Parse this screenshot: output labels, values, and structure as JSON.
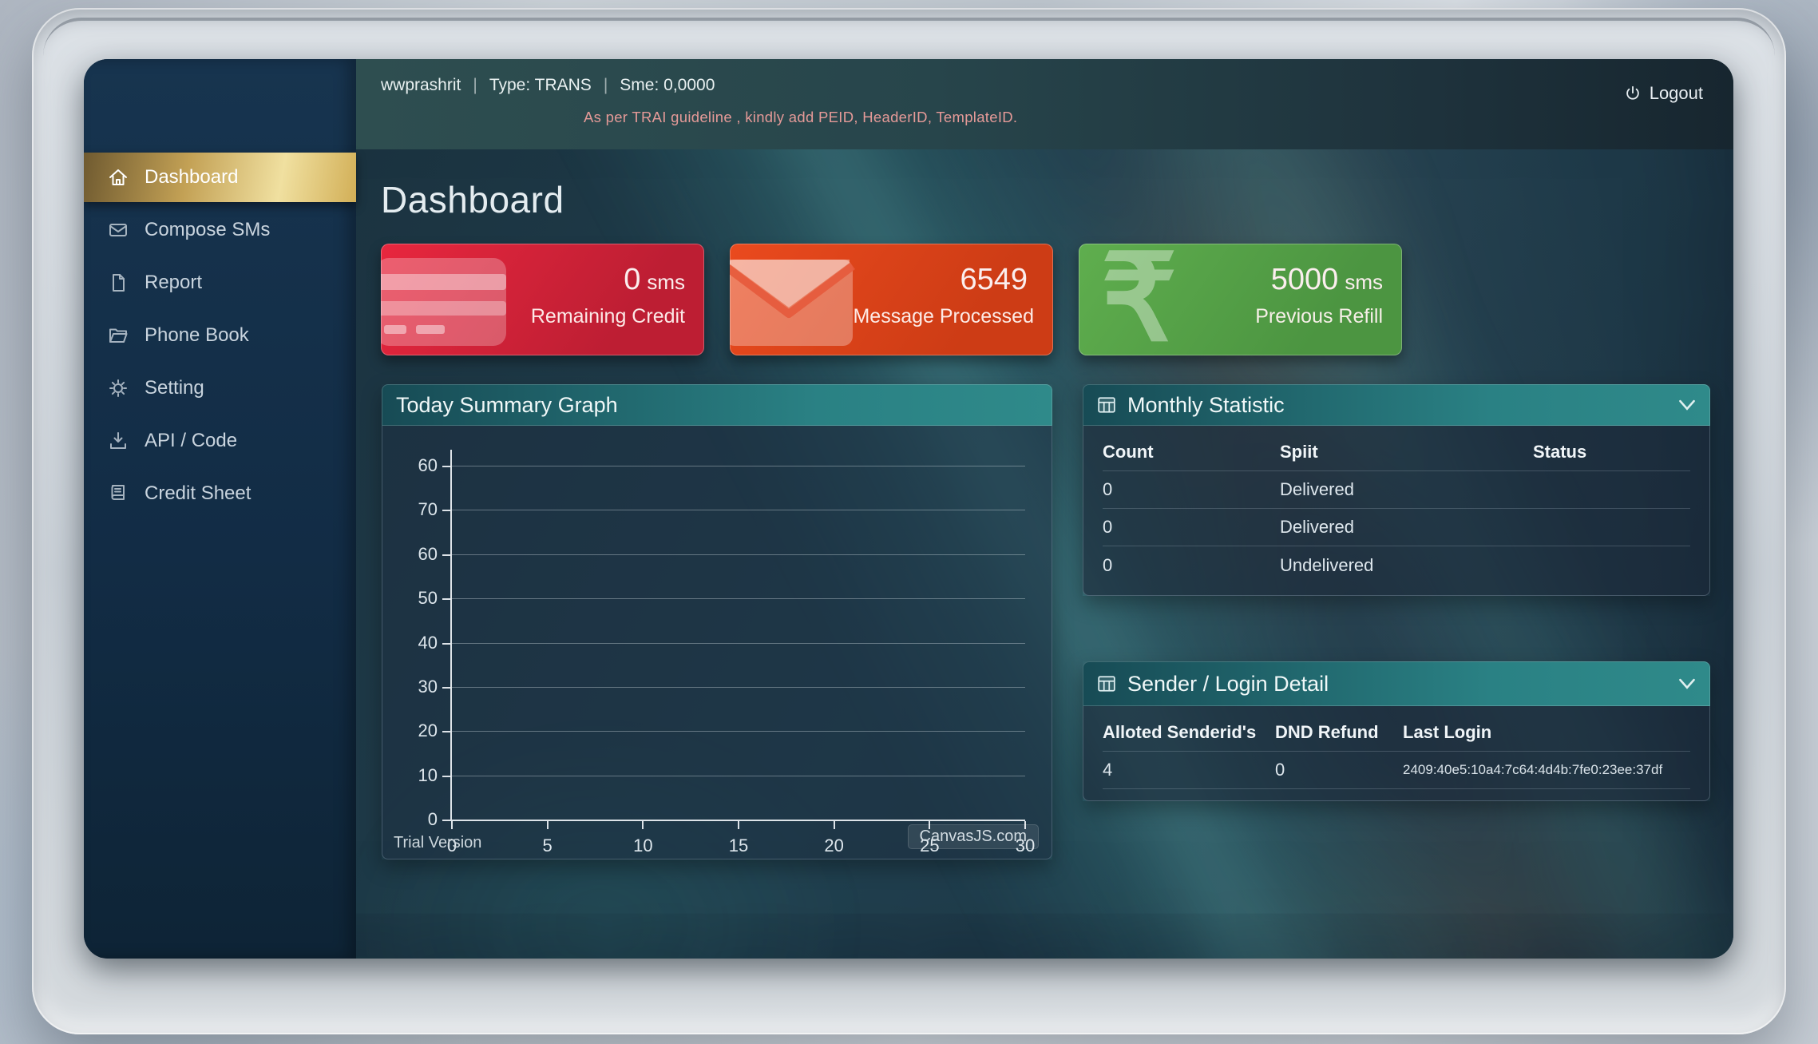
{
  "window": {
    "logout_label": "Logout"
  },
  "topbar": {
    "username": "wwprashrit",
    "separator": "|",
    "type_label": "Type: TRANS",
    "sme_label": "Sme: 0,0000",
    "trai_notice": "As per TRAI guideline , kindly add PEID, HeaderID, TemplateID."
  },
  "sidebar": {
    "items": [
      {
        "label": "Dashboard",
        "icon": "home-icon",
        "active": true
      },
      {
        "label": "Compose SMs",
        "icon": "envelope-icon",
        "active": false
      },
      {
        "label": "Report",
        "icon": "file-icon",
        "active": false
      },
      {
        "label": "Phone Book",
        "icon": "folder-icon",
        "active": false
      },
      {
        "label": "Setting",
        "icon": "gear-icon",
        "active": false
      },
      {
        "label": "API / Code",
        "icon": "download-icon",
        "active": false
      },
      {
        "label": "Credit Sheet",
        "icon": "book-icon",
        "active": false
      }
    ]
  },
  "page": {
    "title": "Dashboard"
  },
  "cards": [
    {
      "value": "0",
      "unit": "sms",
      "label": "Remaining Credit",
      "color": "#d02237",
      "icon": "credit-card-icon"
    },
    {
      "value": "6549",
      "unit": "",
      "label": "Message Processed",
      "color": "#dd4520",
      "icon": "envelope-icon"
    },
    {
      "value": "5000",
      "unit": "sms",
      "label": "Previous Refill",
      "color": "#57a449",
      "icon": "rupee-icon",
      "glyph": "₹"
    }
  ],
  "chart_panel": {
    "title": "Today Summary Graph"
  },
  "chart_data": {
    "type": "line",
    "title": "Today Summary Graph",
    "series": [],
    "y_tick_labels": [
      "60",
      "70",
      "60",
      "50",
      "40",
      "30",
      "20",
      "10",
      "0"
    ],
    "x_tick_labels": [
      "0",
      "5",
      "10",
      "15",
      "20",
      "25",
      "30"
    ],
    "xlim": [
      0,
      30
    ],
    "grid": true,
    "legend": false,
    "watermark_left": "Trial Version",
    "watermark_right": "CanvasJS.com"
  },
  "monthly_statistic": {
    "title": "Monthly Statistic",
    "columns": [
      "Count",
      "Spiit",
      "Status"
    ],
    "rows": [
      {
        "count": "0",
        "split": "Delivered",
        "status": ""
      },
      {
        "count": "0",
        "split": "Delivered",
        "status": ""
      },
      {
        "count": "0",
        "split": "Undelivered",
        "status": ""
      }
    ]
  },
  "sender_login": {
    "title": "Sender / Login Detail",
    "columns": [
      "Alloted Senderid's",
      "DND Refund",
      "Last Login"
    ],
    "rows": [
      {
        "alloted": "4",
        "dnd_refund": "0",
        "last_login": "2409:40e5:10a4:7c64:4d4b:7fe0:23ee:37df"
      }
    ]
  }
}
